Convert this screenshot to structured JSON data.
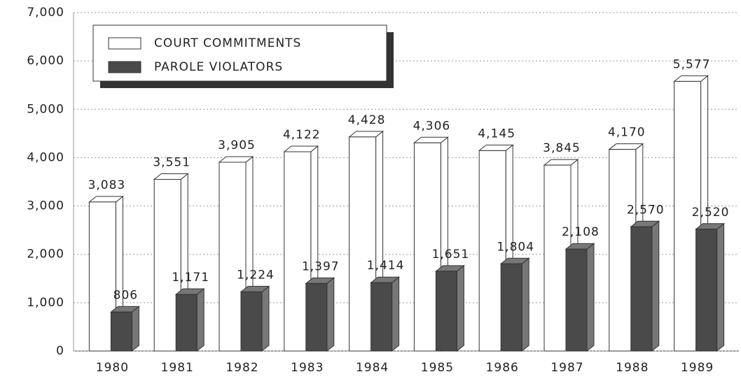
{
  "chart_data": {
    "type": "bar",
    "categories": [
      "1980",
      "1981",
      "1982",
      "1983",
      "1984",
      "1985",
      "1986",
      "1987",
      "1988",
      "1989"
    ],
    "series": [
      {
        "name": "COURT COMMITMENTS",
        "color": "#ffffff",
        "values": [
          3083,
          3551,
          3905,
          4122,
          4428,
          4306,
          4145,
          3845,
          4170,
          5577
        ],
        "value_labels": [
          "3,083",
          "3,551",
          "3,905",
          "4,122",
          "4,428",
          "4,306",
          "4,145",
          "3,845",
          "4,170",
          "5,577"
        ]
      },
      {
        "name": "PAROLE VIOLATORS",
        "color": "#4a4a4a",
        "values": [
          806,
          1171,
          1224,
          1397,
          1414,
          1651,
          1804,
          2108,
          2570,
          2520
        ],
        "value_labels": [
          "806",
          "1,171",
          "1,224",
          "1,397",
          "1,414",
          "1,651",
          "1,804",
          "2,108",
          "2,570",
          "2,520"
        ]
      }
    ],
    "ylim": [
      0,
      7000
    ],
    "yticks": [
      0,
      {
        "value": 1000,
        "label": "1,000"
      },
      {
        "value": 2000,
        "label": "2,000"
      },
      {
        "value": 3000,
        "label": "3,000"
      },
      {
        "value": 4000,
        "label": "4,000"
      },
      {
        "value": 5000,
        "label": "5,000"
      },
      {
        "value": 6000,
        "label": "6,000"
      },
      {
        "value": 7000,
        "label": "7,000"
      }
    ],
    "grid": true,
    "legend": "top-left"
  }
}
